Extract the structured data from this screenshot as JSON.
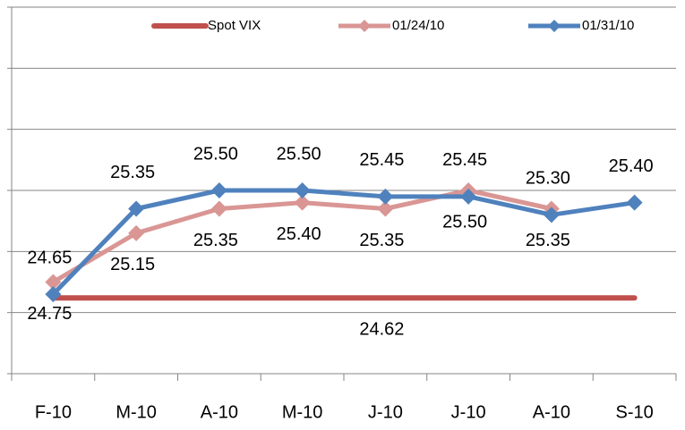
{
  "chart_data": {
    "type": "line",
    "categories": [
      "F-10",
      "M-10",
      "A-10",
      "M-10",
      "J-10",
      "J-10",
      "A-10",
      "S-10"
    ],
    "series": [
      {
        "name": "Spot VIX",
        "color": "#c0504d",
        "values": [
          24.62,
          24.62,
          24.62,
          24.62,
          24.62,
          24.62,
          24.62,
          24.62
        ],
        "value_labels": [
          null,
          null,
          null,
          null,
          "24.62",
          null,
          null,
          null
        ]
      },
      {
        "name": "01/24/10",
        "color": "#d99694",
        "values": [
          24.75,
          25.15,
          25.35,
          25.4,
          25.35,
          25.5,
          25.35,
          null
        ],
        "value_labels": [
          "24.75",
          "25.15",
          "25.35",
          "25.40",
          "25.35",
          "25.50",
          "25.35",
          null
        ]
      },
      {
        "name": "01/31/10",
        "color": "#4f81bd",
        "values": [
          24.65,
          25.35,
          25.5,
          25.5,
          25.45,
          25.45,
          25.3,
          25.4
        ],
        "value_labels": [
          "24.65",
          "25.35",
          "25.50",
          "25.50",
          "25.45",
          "25.45",
          "25.30",
          "25.40"
        ]
      }
    ],
    "ylim": [
      24,
      27
    ],
    "yticks": [
      24,
      24.5,
      25,
      25.5,
      26,
      26.5,
      27
    ],
    "grid": true,
    "legend": "top"
  }
}
